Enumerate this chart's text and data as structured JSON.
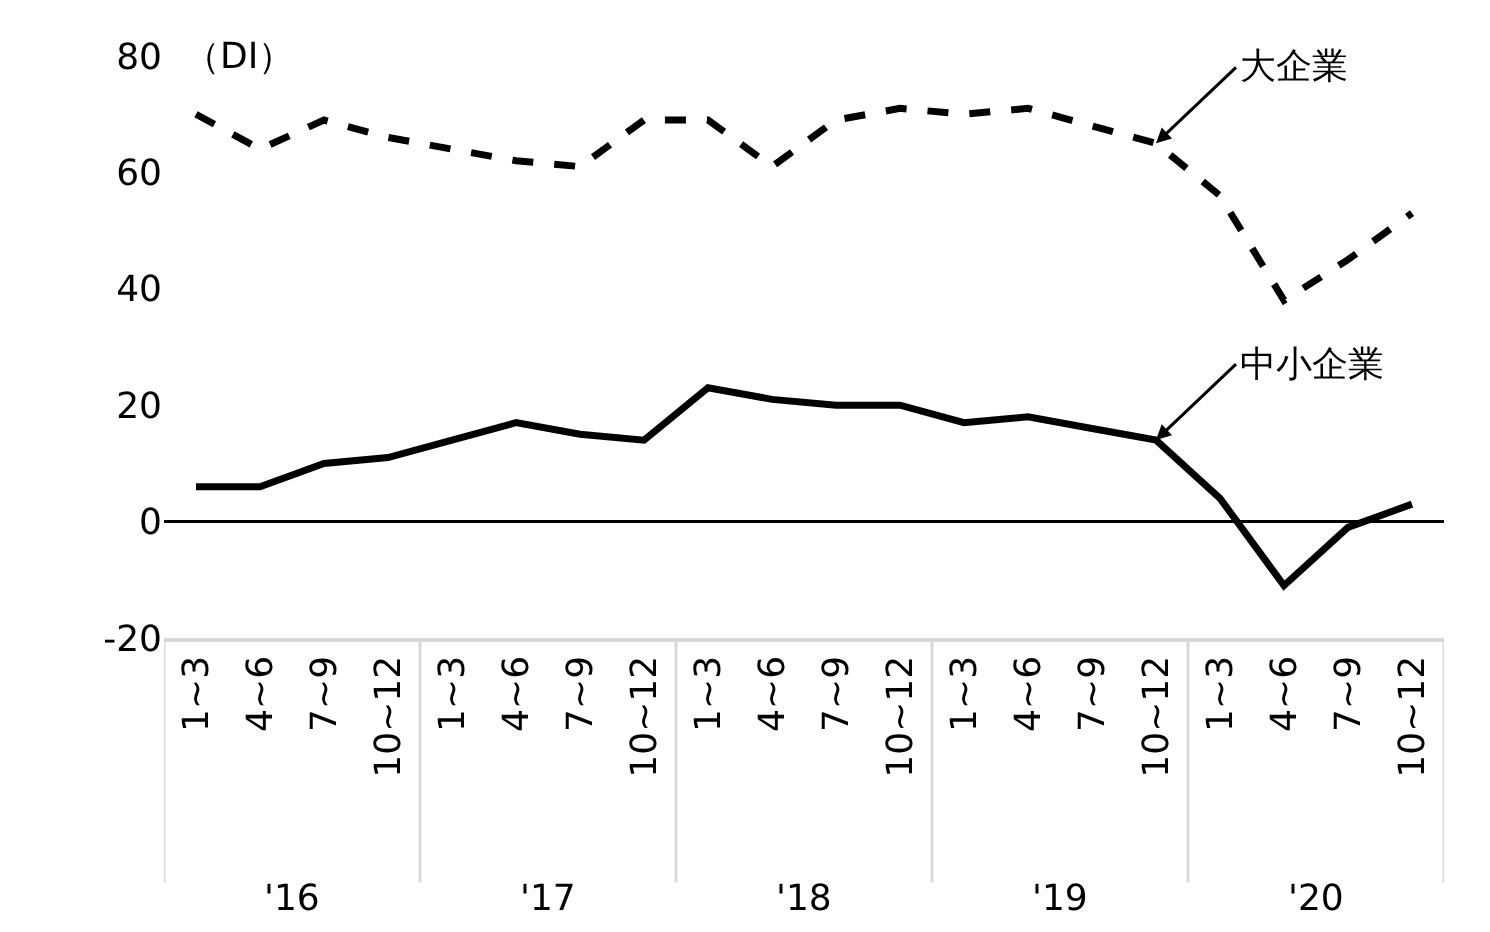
{
  "chart_data": {
    "type": "line",
    "ylabel": "（DI）",
    "categories": [
      "1~3",
      "4~6",
      "7~9",
      "10~12",
      "1~3",
      "4~6",
      "7~9",
      "10~12",
      "1~3",
      "4~6",
      "7~9",
      "10~12",
      "1~3",
      "4~6",
      "7~9",
      "10~12",
      "1~3",
      "4~6",
      "7~9",
      "10~12"
    ],
    "annotations": [
      "'16",
      "'17",
      "'18",
      "'19",
      "'20"
    ],
    "series": [
      {
        "name": "大企業",
        "color": "#000000",
        "line_style": "dashed",
        "values": [
          70,
          64,
          69,
          66,
          64,
          62,
          61,
          69,
          69,
          61,
          69,
          71,
          70,
          71,
          68,
          65,
          56,
          38,
          45,
          53
        ]
      },
      {
        "name": "中小企業",
        "color": "#000000",
        "line_style": "solid",
        "values": [
          6,
          6,
          10,
          11,
          14,
          17,
          15,
          14,
          23,
          21,
          20,
          20,
          17,
          18,
          16,
          14,
          4,
          -11,
          -1,
          3
        ]
      }
    ],
    "ylim": [
      -20,
      80
    ],
    "yticks": [
      -20,
      0,
      20,
      40,
      60,
      80
    ],
    "ref_lines": [
      {
        "axis": "y",
        "value": 0,
        "color": "#000000"
      }
    ],
    "legend": false,
    "marker": "none"
  }
}
